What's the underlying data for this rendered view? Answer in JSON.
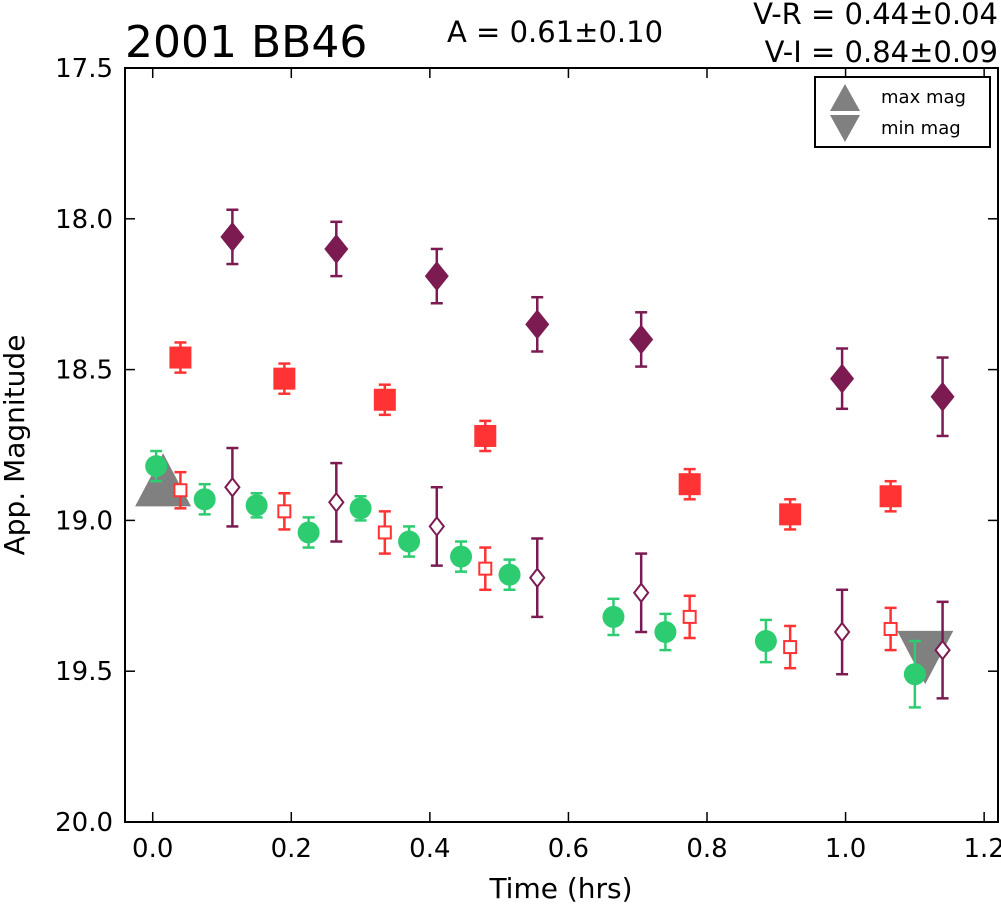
{
  "chart_data": {
    "type": "scatter",
    "title": "2001 BB46",
    "annotations": {
      "amplitude": "A  = 0.61±0.10",
      "v_r": "V-R = 0.44±0.04",
      "v_i": "V-I  = 0.84±0.09"
    },
    "xlabel": "Time (hrs)",
    "ylabel": "App. Magnitude",
    "xlim": [
      -0.04,
      1.22
    ],
    "ylim": [
      20.0,
      17.5
    ],
    "y_inverted": true,
    "x_ticks": [
      "0.0",
      "0.2",
      "0.4",
      "0.6",
      "0.8",
      "1.0",
      "1.2"
    ],
    "y_ticks": [
      "17.5",
      "18.0",
      "18.5",
      "19.0",
      "19.5",
      "20.0"
    ],
    "grid": false,
    "legend": {
      "placement": "top-right",
      "entries": [
        {
          "label": "max mag",
          "marker": "triangle-up",
          "color": "#808080"
        },
        {
          "label": "min mag",
          "marker": "triangle-down",
          "color": "#808080"
        }
      ]
    },
    "series": [
      {
        "marker": "circle-filled",
        "color": "#2ecc71",
        "x": [
          0.005,
          0.075,
          0.15,
          0.225,
          0.3,
          0.37,
          0.445,
          0.515,
          0.665,
          0.74,
          0.885,
          1.1
        ],
        "y": [
          18.82,
          18.93,
          18.95,
          19.04,
          18.96,
          19.07,
          19.12,
          19.18,
          19.32,
          19.37,
          19.4,
          19.51
        ],
        "err": [
          0.05,
          0.05,
          0.04,
          0.05,
          0.04,
          0.05,
          0.05,
          0.05,
          0.06,
          0.06,
          0.07,
          0.11
        ]
      },
      {
        "marker": "square-filled",
        "color": "#ff3333",
        "x": [
          0.04,
          0.19,
          0.335,
          0.48,
          0.775,
          0.92,
          1.065
        ],
        "y": [
          18.46,
          18.53,
          18.6,
          18.72,
          18.88,
          18.98,
          18.92
        ],
        "err": [
          0.05,
          0.05,
          0.05,
          0.05,
          0.05,
          0.05,
          0.05
        ]
      },
      {
        "marker": "diamond-filled",
        "color": "#7b1b52",
        "x": [
          0.115,
          0.265,
          0.41,
          0.555,
          0.705,
          0.995,
          1.14
        ],
        "y": [
          18.06,
          18.1,
          18.19,
          18.35,
          18.4,
          18.53,
          18.59
        ],
        "err": [
          0.09,
          0.09,
          0.09,
          0.09,
          0.09,
          0.1,
          0.13
        ]
      },
      {
        "marker": "square-open",
        "color": "#ff3333",
        "x": [
          0.04,
          0.19,
          0.335,
          0.48,
          0.775,
          0.92,
          1.065
        ],
        "y": [
          18.9,
          18.97,
          19.04,
          19.16,
          19.32,
          19.42,
          19.36
        ],
        "err": [
          0.06,
          0.06,
          0.07,
          0.07,
          0.07,
          0.07,
          0.07
        ]
      },
      {
        "marker": "diamond-open",
        "color": "#7b1b52",
        "x": [
          0.115,
          0.265,
          0.41,
          0.555,
          0.705,
          0.995,
          1.14
        ],
        "y": [
          18.89,
          18.94,
          19.02,
          19.19,
          19.24,
          19.37,
          19.43
        ],
        "err": [
          0.13,
          0.13,
          0.13,
          0.13,
          0.13,
          0.14,
          0.16
        ]
      }
    ],
    "extrema": [
      {
        "type": "max",
        "x": 0.015,
        "y": 18.87,
        "color": "#808080"
      },
      {
        "type": "min",
        "x": 1.115,
        "y": 19.45,
        "color": "#808080"
      }
    ]
  }
}
